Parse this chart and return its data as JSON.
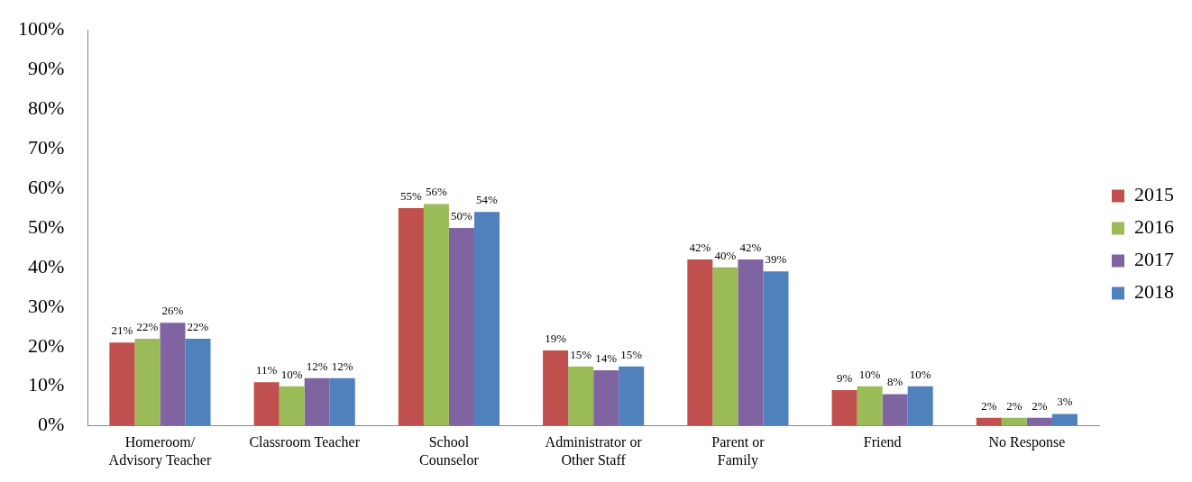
{
  "chart_data": {
    "type": "bar",
    "categories": [
      "Homeroom/\nAdvisory Teacher",
      "Classroom Teacher",
      "School\nCounselor",
      "Administrator or\nOther Staff",
      "Parent or\nFamily",
      "Friend",
      "No Response"
    ],
    "series": [
      {
        "name": "2015",
        "color": "#c0504d",
        "values": [
          21,
          11,
          55,
          19,
          42,
          9,
          2
        ],
        "value_labels": [
          "21%",
          "11%",
          "55%",
          "19%",
          "42%",
          "9%",
          "2%"
        ]
      },
      {
        "name": "2016",
        "color": "#9bbb59",
        "values": [
          22,
          10,
          56,
          15,
          40,
          10,
          2
        ],
        "value_labels": [
          "22%",
          "10%",
          "56%",
          "15%",
          "40%",
          "10%",
          "2%"
        ]
      },
      {
        "name": "2017",
        "color": "#8064a2",
        "values": [
          26,
          12,
          50,
          14,
          42,
          8,
          2
        ],
        "value_labels": [
          "26%",
          "12%",
          "50%",
          "14%",
          "42%",
          "8%",
          "2%"
        ]
      },
      {
        "name": "2018",
        "color": "#4f81bd",
        "values": [
          22,
          12,
          54,
          15,
          39,
          10,
          3
        ],
        "value_labels": [
          "22%",
          "12%",
          "54%",
          "15%",
          "39%",
          "10%",
          "3%"
        ]
      }
    ],
    "ylim": [
      0,
      100
    ],
    "yticks": [
      {
        "value": 0,
        "label": "0%"
      },
      {
        "value": 10,
        "label": "10%"
      },
      {
        "value": 20,
        "label": "20%"
      },
      {
        "value": 30,
        "label": "30%"
      },
      {
        "value": 40,
        "label": "40%"
      },
      {
        "value": 50,
        "label": "50%"
      },
      {
        "value": 60,
        "label": "60%"
      },
      {
        "value": 70,
        "label": "70%"
      },
      {
        "value": 80,
        "label": "80%"
      },
      {
        "value": 90,
        "label": "90%"
      },
      {
        "value": 100,
        "label": "100%"
      }
    ],
    "grid": false,
    "legend": "right"
  }
}
